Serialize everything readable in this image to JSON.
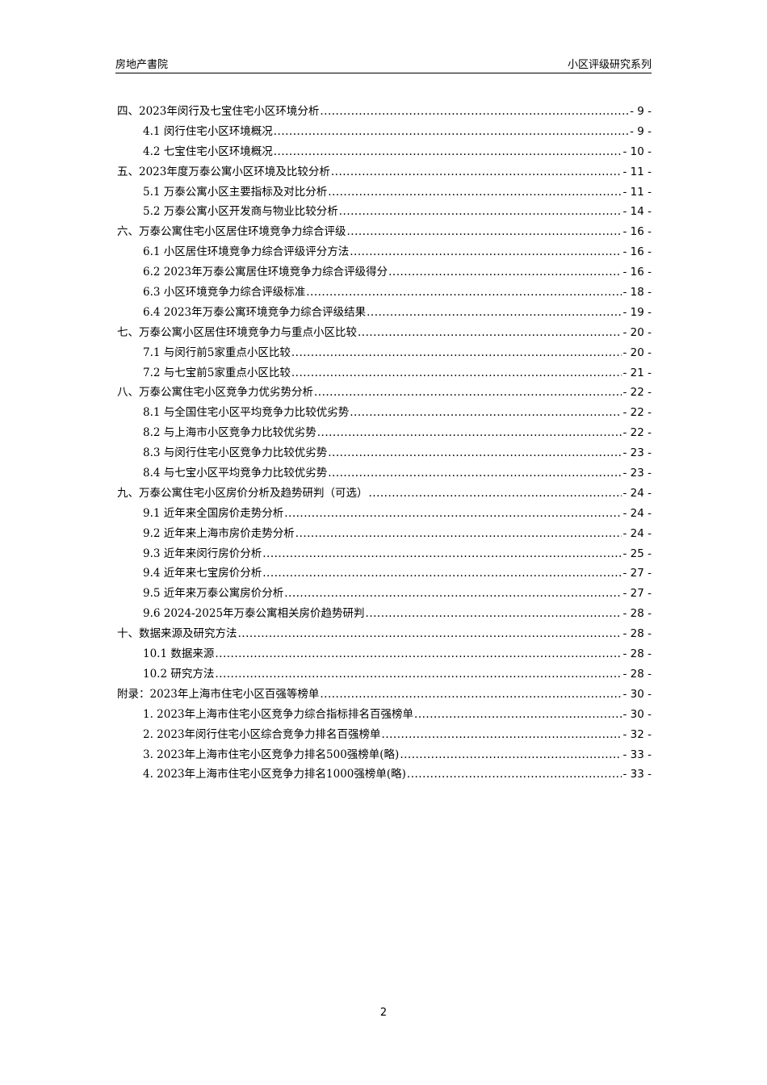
{
  "header": {
    "left": "房地产書院",
    "right": "小区评级研究系列"
  },
  "toc": [
    {
      "level": 1,
      "title": "四、2023年闵行及七宝住宅小区环境分析",
      "page": "- 9 -"
    },
    {
      "level": 2,
      "title": "4.1 闵行住宅小区环境概况",
      "page": "- 9 -"
    },
    {
      "level": 2,
      "title": "4.2 七宝住宅小区环境概况",
      "page": "- 10 -"
    },
    {
      "level": 1,
      "title": "五、2023年度万泰公寓小区环境及比较分析",
      "page": "- 11 -"
    },
    {
      "level": 2,
      "title": "5.1 万泰公寓小区主要指标及对比分析",
      "page": "- 11 -"
    },
    {
      "level": 2,
      "title": "5.2 万泰公寓小区开发商与物业比较分析",
      "page": "- 14 -"
    },
    {
      "level": 1,
      "title": "六、万泰公寓住宅小区居住环境竞争力综合评级",
      "page": "- 16 -"
    },
    {
      "level": 2,
      "title": "6.1 小区居住环境竞争力综合评级评分方法",
      "page": "- 16 -"
    },
    {
      "level": 2,
      "title": "6.2 2023年万泰公寓居住环境竞争力综合评级得分",
      "page": "- 16 -"
    },
    {
      "level": 2,
      "title": "6.3 小区环境竞争力综合评级标准",
      "page": "- 18 -"
    },
    {
      "level": 2,
      "title": "6.4 2023年万泰公寓环境竞争力综合评级结果",
      "page": "- 19 -"
    },
    {
      "level": 1,
      "title": "七、万泰公寓小区居住环境竞争力与重点小区比较",
      "page": "- 20 -"
    },
    {
      "level": 2,
      "title": "7.1 与闵行前5家重点小区比较",
      "page": "- 20 -"
    },
    {
      "level": 2,
      "title": "7.2 与七宝前5家重点小区比较",
      "page": "- 21 -"
    },
    {
      "level": 1,
      "title": "八、万泰公寓住宅小区竞争力优劣势分析",
      "page": "- 22 -"
    },
    {
      "level": 2,
      "title": "8.1 与全国住宅小区平均竞争力比较优劣势",
      "page": "- 22 -"
    },
    {
      "level": 2,
      "title": "8.2 与上海市小区竞争力比较优劣势",
      "page": "- 22 -"
    },
    {
      "level": 2,
      "title": "8.3 与闵行住宅小区竞争力比较优劣势",
      "page": "- 23 -"
    },
    {
      "level": 2,
      "title": "8.4 与七宝小区平均竞争力比较优劣势",
      "page": "- 23 -"
    },
    {
      "level": 1,
      "title": "九、万泰公寓住宅小区房价分析及趋势研判（可选）",
      "page": "- 24 -"
    },
    {
      "level": 2,
      "title": "9.1 近年来全国房价走势分析",
      "page": "- 24 -"
    },
    {
      "level": 2,
      "title": "9.2 近年来上海市房价走势分析",
      "page": "- 24 -"
    },
    {
      "level": 2,
      "title": "9.3 近年来闵行房价分析",
      "page": "- 25 -"
    },
    {
      "level": 2,
      "title": "9.4 近年来七宝房价分析",
      "page": "- 27 -"
    },
    {
      "level": 2,
      "title": "9.5 近年来万泰公寓房价分析",
      "page": "- 27 -"
    },
    {
      "level": 2,
      "title": "9.6 2024-2025年万泰公寓相关房价趋势研判",
      "page": "- 28 -"
    },
    {
      "level": 1,
      "title": "十、数据来源及研究方法",
      "page": "- 28 -"
    },
    {
      "level": 2,
      "title": "10.1 数据来源",
      "page": "- 28 -"
    },
    {
      "level": 2,
      "title": "10.2 研究方法",
      "page": "- 28 -"
    },
    {
      "level": 1,
      "title": "附录：2023年上海市住宅小区百强等榜单",
      "page": "- 30 -"
    },
    {
      "level": 2,
      "title": "1. 2023年上海市住宅小区竞争力综合指标排名百强榜单",
      "page": "- 30 -"
    },
    {
      "level": 2,
      "title": "2. 2023年闵行住宅小区综合竞争力排名百强榜单",
      "page": "- 32 -"
    },
    {
      "level": 2,
      "title": "3. 2023年上海市住宅小区竞争力排名500强榜单(略)",
      "page": "- 33 -"
    },
    {
      "level": 2,
      "title": "4. 2023年上海市住宅小区竞争力排名1000强榜单(略)",
      "page": "- 33 -"
    }
  ],
  "footer": {
    "page_number": "2"
  }
}
